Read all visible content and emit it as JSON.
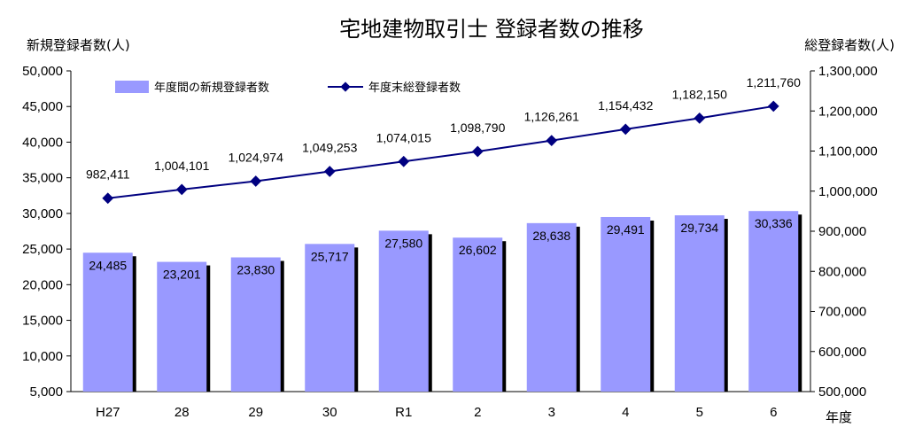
{
  "chart_data": {
    "type": "bar+line",
    "title": "宅地建物取引士 登録者数の推移",
    "categories": [
      "H27",
      "28",
      "29",
      "30",
      "R1",
      "2",
      "3",
      "4",
      "5",
      "6"
    ],
    "xlabel": "年度",
    "y_left": {
      "label": "新規登録者数(人)",
      "min": 5000,
      "max": 50000,
      "step": 5000
    },
    "y_right": {
      "label": "総登録者数(人)",
      "min": 500000,
      "max": 1300000,
      "step": 100000
    },
    "series": [
      {
        "name": "年度間の新規登録者数",
        "kind": "bar",
        "axis": "left",
        "color": "#9999ff",
        "values": [
          24485,
          23201,
          23830,
          25717,
          27580,
          26602,
          28638,
          29491,
          29734,
          30336
        ]
      },
      {
        "name": "年度末総登録者数",
        "kind": "line",
        "axis": "right",
        "color": "#000080",
        "values": [
          982411,
          1004101,
          1024974,
          1049253,
          1074015,
          1098790,
          1126261,
          1154432,
          1182150,
          1211760
        ]
      }
    ],
    "legend_position": "top-left",
    "grid": false
  }
}
